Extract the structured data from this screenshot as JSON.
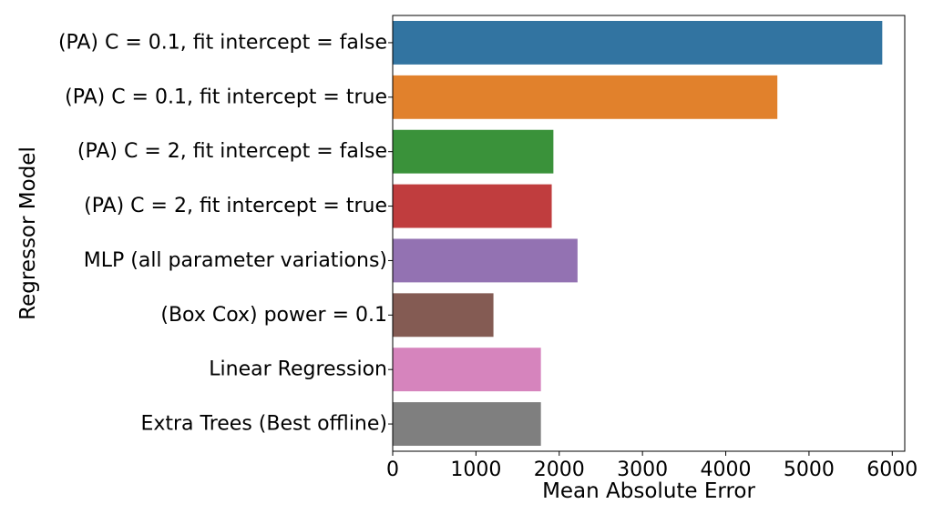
{
  "chart_data": {
    "type": "bar",
    "orientation": "horizontal",
    "title": "",
    "xlabel": "Mean Absolute Error",
    "ylabel": "Regressor Model",
    "xlim": [
      0,
      6150
    ],
    "xticks": [
      0,
      1000,
      2000,
      3000,
      4000,
      5000,
      6000
    ],
    "grid": false,
    "categories": [
      "(PA) C = 0.1, fit intercept = false",
      "(PA) C = 0.1, fit intercept = true",
      "(PA) C = 2, fit intercept = false",
      "(PA) C = 2, fit intercept = true",
      "MLP (all parameter variations)",
      "(Box Cox) power = 0.1",
      "Linear Regression",
      "Extra Trees (Best offline)"
    ],
    "values": [
      5880,
      4620,
      1930,
      1910,
      2220,
      1210,
      1780,
      1780
    ],
    "colors": [
      "#3274a1",
      "#e1812c",
      "#3a923a",
      "#c03d3e",
      "#9372b2",
      "#845b53",
      "#d684bd",
      "#7f7f7f"
    ]
  }
}
